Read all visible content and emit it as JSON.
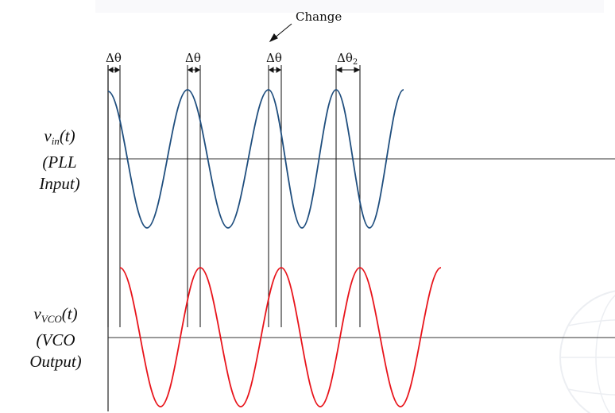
{
  "colors": {
    "input_wave": "#1f4e7e",
    "vco_wave": "#e8141b",
    "axis": "#333333",
    "watermark": "#d8dde6"
  },
  "annotations": {
    "change": "Change",
    "delta_theta": "Δθ",
    "delta_theta2_base": "Δθ",
    "delta_theta2_sub": "2"
  },
  "input_label": {
    "symbol": "v",
    "subscript": "in",
    "arg": "(t)",
    "line2": "(PLL",
    "line3": "Input)"
  },
  "vco_label": {
    "symbol": "v",
    "subscript": "VCO",
    "arg": "(t)",
    "line2": "(VCO",
    "line3": "Output)"
  },
  "icons": {
    "arrow": "arrow-down-left-icon",
    "globe": "globe-watermark-icon"
  }
}
